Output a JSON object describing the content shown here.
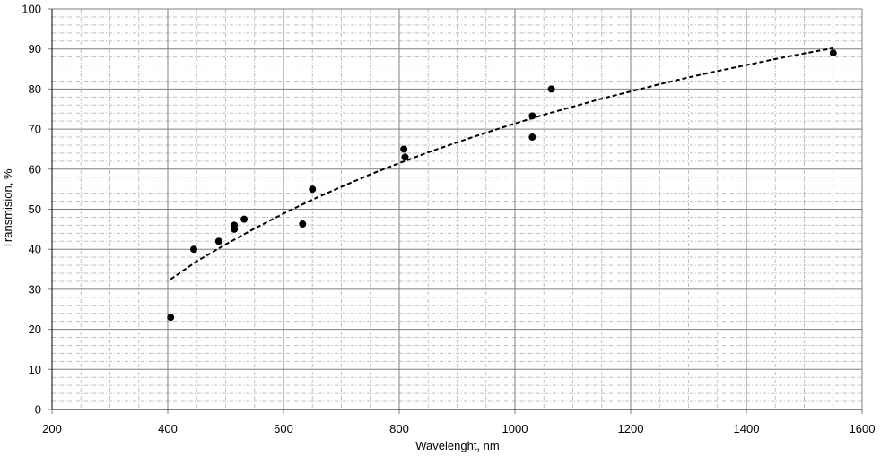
{
  "chart_data": {
    "type": "scatter",
    "title": "",
    "xlabel": "Wavelenght, nm",
    "ylabel": "Transmision, %",
    "xlim": [
      200,
      1600
    ],
    "ylim": [
      0,
      100
    ],
    "x_ticks": [
      200,
      400,
      600,
      800,
      1000,
      1200,
      1400,
      1600
    ],
    "y_ticks": [
      0,
      10,
      20,
      30,
      40,
      50,
      60,
      70,
      80,
      90,
      100
    ],
    "x_minor_step": 50,
    "y_minor_step": 2,
    "grid": true,
    "legend": "none",
    "points": [
      {
        "x": 405,
        "y": 23.0
      },
      {
        "x": 445,
        "y": 40.0
      },
      {
        "x": 488,
        "y": 42.0
      },
      {
        "x": 515,
        "y": 45.0
      },
      {
        "x": 515,
        "y": 46.0
      },
      {
        "x": 532,
        "y": 47.5
      },
      {
        "x": 633,
        "y": 46.3
      },
      {
        "x": 650,
        "y": 55.0
      },
      {
        "x": 808,
        "y": 65.0
      },
      {
        "x": 810,
        "y": 63.0
      },
      {
        "x": 1030,
        "y": 73.3
      },
      {
        "x": 1030,
        "y": 68.0
      },
      {
        "x": 1063,
        "y": 80.0
      },
      {
        "x": 1550,
        "y": 89.0
      }
    ],
    "trendline": {
      "style": "dashed",
      "x": [
        405,
        450,
        500,
        550,
        600,
        650,
        700,
        750,
        800,
        850,
        900,
        950,
        1000,
        1050,
        1100,
        1150,
        1200,
        1250,
        1300,
        1350,
        1400,
        1450,
        1500,
        1550
      ],
      "y": [
        32.5,
        37.0,
        41.2,
        45.2,
        48.9,
        52.4,
        55.6,
        58.7,
        61.5,
        64.2,
        66.7,
        69.1,
        71.4,
        73.6,
        75.6,
        77.6,
        79.4,
        81.2,
        82.9,
        84.5,
        86.0,
        87.5,
        88.9,
        90.2
      ]
    },
    "colors": {
      "points": "#000000",
      "trendline": "#000000",
      "major_grid": "#7f7f7f",
      "minor_grid": "#bfbfbf",
      "axis": "#000000"
    }
  }
}
